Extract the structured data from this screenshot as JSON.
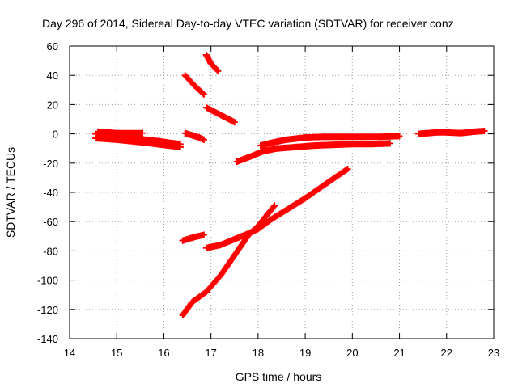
{
  "chart_data": {
    "type": "scatter",
    "title": "Day 296 of 2014, Sidereal Day-to-day VTEC variation (SDTVAR) for receiver conz",
    "xlabel": "GPS time / hours",
    "ylabel": "SDTVAR / TECUs",
    "xlim": [
      14,
      23
    ],
    "ylim": [
      -140,
      60
    ],
    "xticks": [
      14,
      15,
      16,
      17,
      18,
      19,
      20,
      21,
      22,
      23
    ],
    "yticks": [
      60,
      40,
      20,
      0,
      -20,
      -40,
      -60,
      -80,
      -100,
      -120,
      -140
    ],
    "grid": true,
    "marker": "plus",
    "series": [
      {
        "color": "#ff0000",
        "segments": [
          {
            "x": [
              14.55,
              14.8,
              15.0,
              15.3,
              15.6,
              15.9,
              16.1,
              16.35
            ],
            "y": [
              0,
              -0.5,
              -1.5,
              -2.5,
              -4,
              -5,
              -6,
              -7
            ]
          },
          {
            "x": [
              14.55,
              15.0,
              15.6,
              16.35
            ],
            "y": [
              -3,
              -4,
              -6,
              -9
            ]
          },
          {
            "x": [
              14.6,
              15.0,
              15.55
            ],
            "y": [
              1.5,
              0.5,
              0.5
            ]
          },
          {
            "x": [
              16.45,
              16.6,
              16.75,
              16.85
            ],
            "y": [
              0.5,
              -1,
              -2.5,
              -4
            ]
          },
          {
            "x": [
              16.45,
              16.65,
              16.85
            ],
            "y": [
              40,
              33,
              27
            ]
          },
          {
            "x": [
              16.9,
              17.0,
              17.15
            ],
            "y": [
              54,
              48,
              43
            ]
          },
          {
            "x": [
              16.9,
              17.2,
              17.5
            ],
            "y": [
              18,
              13,
              8
            ]
          },
          {
            "x": [
              17.55,
              17.8,
              18.1,
              18.4,
              18.8,
              19.2,
              19.6,
              20.0,
              20.4,
              20.8
            ],
            "y": [
              -19,
              -16,
              -12,
              -10,
              -9,
              -8,
              -7.5,
              -7,
              -7,
              -6.5
            ]
          },
          {
            "x": [
              18.05,
              18.3,
              18.6,
              19.0,
              19.4,
              19.8,
              20.2,
              20.6,
              21.0
            ],
            "y": [
              -8,
              -6,
              -4,
              -2.5,
              -2,
              -2,
              -2,
              -2,
              -1.5
            ]
          },
          {
            "x": [
              21.4,
              21.6,
              21.8,
              22.0,
              22.3,
              22.6,
              22.8
            ],
            "y": [
              0,
              0.5,
              1,
              1,
              0.5,
              1.5,
              2
            ]
          },
          {
            "x": [
              16.4,
              16.6,
              16.85
            ],
            "y": [
              -73,
              -71,
              -69
            ]
          },
          {
            "x": [
              16.9,
              17.2,
              17.5,
              17.8,
              18.0,
              18.3,
              18.6,
              19.0,
              19.4,
              19.9
            ],
            "y": [
              -78,
              -76,
              -72,
              -68,
              -65,
              -58,
              -52,
              -44,
              -35,
              -24
            ]
          },
          {
            "x": [
              16.4,
              16.6,
              16.9,
              17.2,
              17.5,
              17.8,
              18.0,
              18.2,
              18.35
            ],
            "y": [
              -124,
              -115,
              -108,
              -97,
              -83,
              -69,
              -63,
              -55,
              -49
            ]
          }
        ]
      }
    ]
  }
}
